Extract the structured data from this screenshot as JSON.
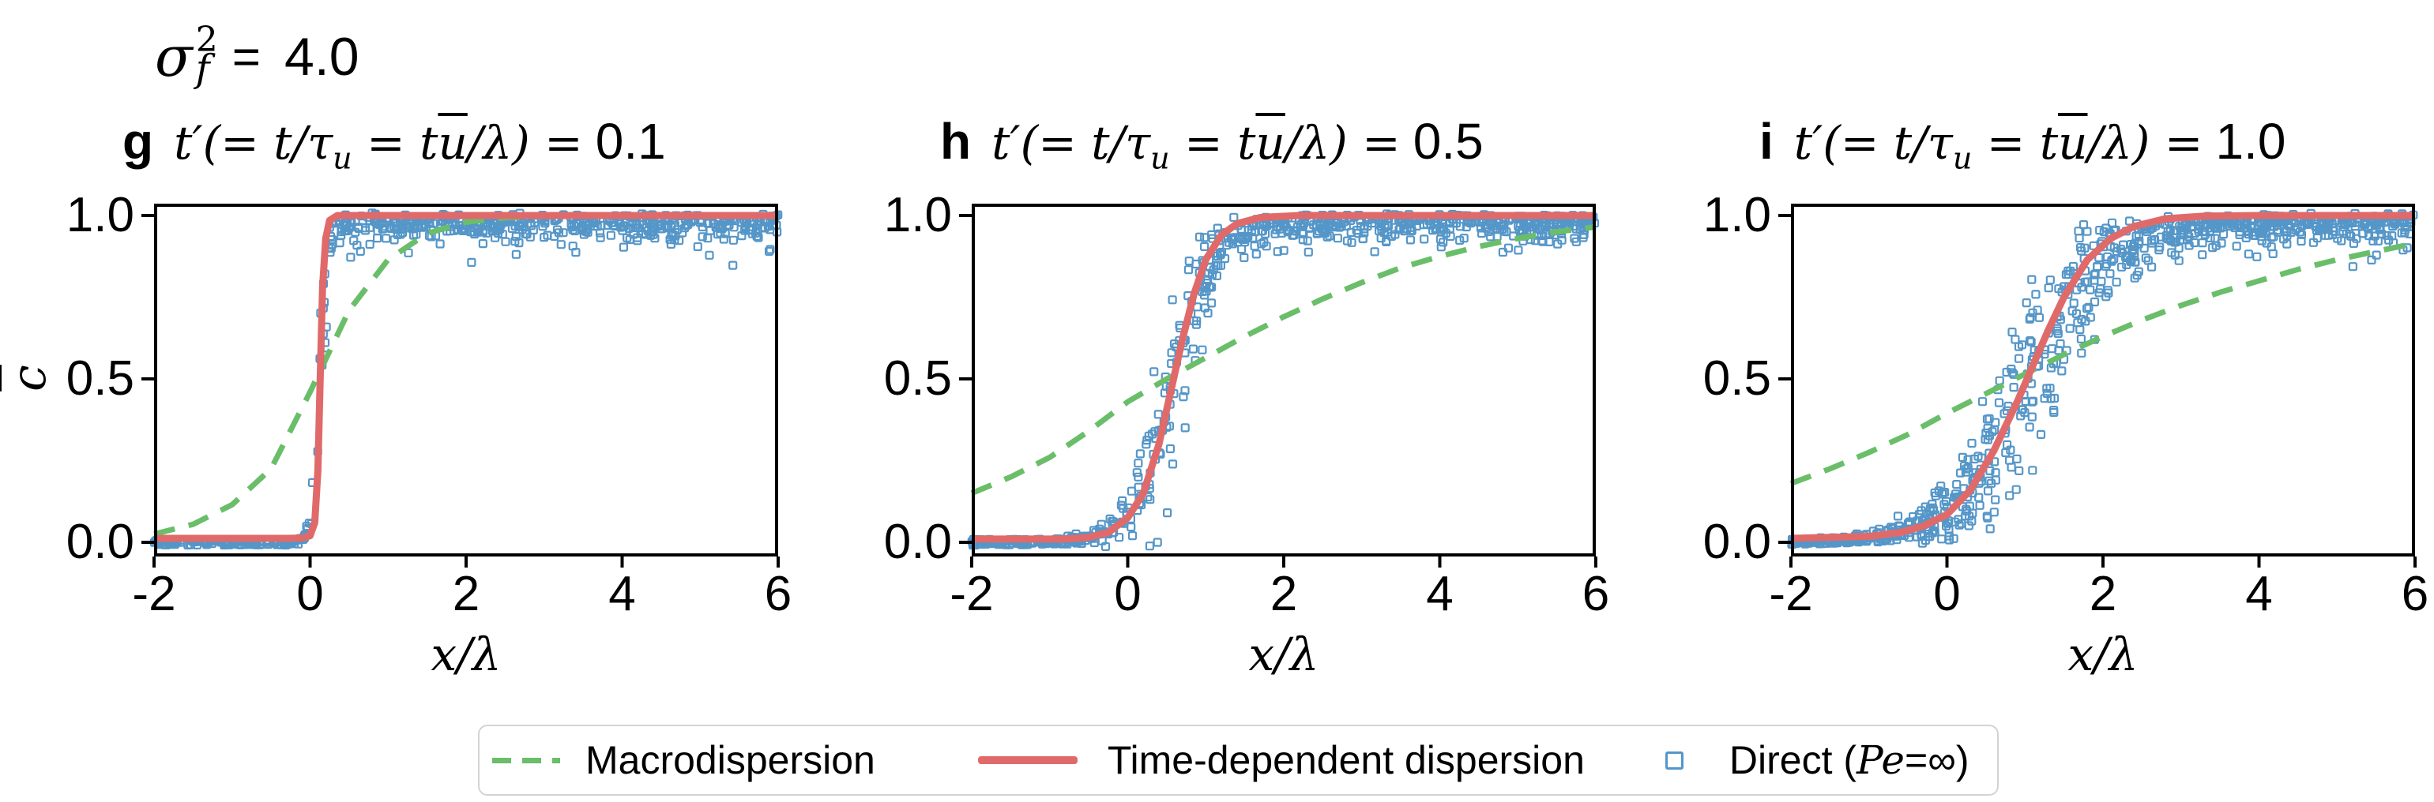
{
  "colors": {
    "green": "#6abe6a",
    "red": "#e06a6a",
    "blue": "#5596c8",
    "axis": "#000000",
    "legend_border": "#d3d3d3"
  },
  "suptitle": {
    "symbol": "σ",
    "sup": "2",
    "sub": "f",
    "eq": "=",
    "value": "4.0"
  },
  "ylabel": "c",
  "xlabel": "x/λ",
  "axes": {
    "xlim": [
      -2,
      6
    ],
    "ylim": [
      0,
      1
    ],
    "x_ticks": [
      "-2",
      "0",
      "2",
      "4",
      "6"
    ],
    "y_ticks": [
      "1.0",
      "0.5",
      "0.0"
    ],
    "x_tick_values": [
      -2,
      0,
      2,
      4,
      6
    ],
    "y_tick_values": [
      1.0,
      0.5,
      0.0
    ]
  },
  "legend": {
    "items": [
      {
        "marker": "dashed-green-line",
        "label": "Macrodispersion"
      },
      {
        "marker": "solid-red-line",
        "label": "Time-dependent dispersion"
      },
      {
        "marker": "open-blue-square",
        "label_pre": "Direct (",
        "label_pe": "Pe",
        "label_post": "=∞)"
      }
    ]
  },
  "formula": {
    "pre": "t′(= t/τ",
    "sub": "u",
    "mid": " = t",
    "ubar": "u",
    "post": "/λ) = "
  },
  "chart_data": [
    {
      "type": "line+scatter",
      "panel_letter": "g",
      "t_prime": "0.1",
      "series": {
        "macrodispersion": [
          [
            -2,
            0.025
          ],
          [
            -1.5,
            0.055
          ],
          [
            -1,
            0.115
          ],
          [
            -0.5,
            0.225
          ],
          [
            0,
            0.46
          ],
          [
            0.5,
            0.71
          ],
          [
            1,
            0.865
          ],
          [
            1.5,
            0.945
          ],
          [
            2,
            0.98
          ],
          [
            2.5,
            0.993
          ],
          [
            3,
            0.998
          ],
          [
            3.5,
            1
          ],
          [
            4,
            1
          ],
          [
            4.5,
            1
          ],
          [
            5,
            1
          ],
          [
            5.5,
            1
          ],
          [
            6,
            1
          ]
        ],
        "time_dependent": [
          [
            -2,
            0.012
          ],
          [
            -0.3,
            0.012
          ],
          [
            -0.1,
            0.013
          ],
          [
            0,
            0.02
          ],
          [
            0.06,
            0.06
          ],
          [
            0.1,
            0.22
          ],
          [
            0.13,
            0.5
          ],
          [
            0.16,
            0.78
          ],
          [
            0.2,
            0.93
          ],
          [
            0.25,
            0.985
          ],
          [
            0.35,
            1
          ],
          [
            6,
            1
          ]
        ]
      },
      "scatter_model": {
        "seed": 7,
        "n": 650,
        "center": 0.13,
        "width": 0.05,
        "mid_spread": 0.32,
        "top_spread": 0.055
      }
    },
    {
      "type": "line+scatter",
      "panel_letter": "h",
      "t_prime": "0.5",
      "series": {
        "macrodispersion": [
          [
            -2,
            0.15
          ],
          [
            -1.5,
            0.2
          ],
          [
            -1,
            0.26
          ],
          [
            -0.5,
            0.34
          ],
          [
            0,
            0.43
          ],
          [
            0.5,
            0.5
          ],
          [
            1,
            0.565
          ],
          [
            1.5,
            0.63
          ],
          [
            2,
            0.69
          ],
          [
            2.5,
            0.745
          ],
          [
            3,
            0.795
          ],
          [
            3.5,
            0.84
          ],
          [
            4,
            0.875
          ],
          [
            4.5,
            0.905
          ],
          [
            5,
            0.93
          ],
          [
            5.5,
            0.95
          ],
          [
            6,
            0.965
          ]
        ],
        "time_dependent": [
          [
            -2,
            0.01
          ],
          [
            -0.8,
            0.01
          ],
          [
            -0.5,
            0.015
          ],
          [
            -0.25,
            0.03
          ],
          [
            0,
            0.075
          ],
          [
            0.2,
            0.15
          ],
          [
            0.4,
            0.3
          ],
          [
            0.55,
            0.46
          ],
          [
            0.7,
            0.62
          ],
          [
            0.85,
            0.76
          ],
          [
            1,
            0.865
          ],
          [
            1.2,
            0.94
          ],
          [
            1.4,
            0.975
          ],
          [
            1.7,
            0.994
          ],
          [
            2.2,
            1
          ],
          [
            6,
            1
          ]
        ]
      },
      "scatter_model": {
        "seed": 13,
        "n": 720,
        "center": 0.58,
        "width": 0.26,
        "mid_spread": 0.45,
        "top_spread": 0.06
      }
    },
    {
      "type": "line+scatter",
      "panel_letter": "i",
      "t_prime": "1.0",
      "series": {
        "macrodispersion": [
          [
            -2,
            0.18
          ],
          [
            -1.5,
            0.225
          ],
          [
            -1,
            0.275
          ],
          [
            -0.5,
            0.33
          ],
          [
            0,
            0.395
          ],
          [
            0.5,
            0.455
          ],
          [
            1,
            0.515
          ],
          [
            1.5,
            0.575
          ],
          [
            2,
            0.63
          ],
          [
            2.5,
            0.68
          ],
          [
            3,
            0.725
          ],
          [
            3.5,
            0.765
          ],
          [
            4,
            0.8
          ],
          [
            4.5,
            0.835
          ],
          [
            5,
            0.865
          ],
          [
            5.5,
            0.89
          ],
          [
            6,
            0.915
          ]
        ],
        "time_dependent": [
          [
            -2,
            0.012
          ],
          [
            -1,
            0.018
          ],
          [
            -0.6,
            0.03
          ],
          [
            -0.3,
            0.05
          ],
          [
            0,
            0.085
          ],
          [
            0.3,
            0.16
          ],
          [
            0.6,
            0.28
          ],
          [
            0.9,
            0.43
          ],
          [
            1.1,
            0.54
          ],
          [
            1.3,
            0.65
          ],
          [
            1.5,
            0.75
          ],
          [
            1.8,
            0.865
          ],
          [
            2.1,
            0.93
          ],
          [
            2.4,
            0.967
          ],
          [
            2.8,
            0.99
          ],
          [
            3.3,
            0.998
          ],
          [
            4,
            1
          ],
          [
            6,
            1
          ]
        ]
      },
      "scatter_model": {
        "seed": 29,
        "n": 850,
        "center": 1.05,
        "width": 0.48,
        "mid_spread": 0.5,
        "top_spread": 0.065
      }
    }
  ]
}
